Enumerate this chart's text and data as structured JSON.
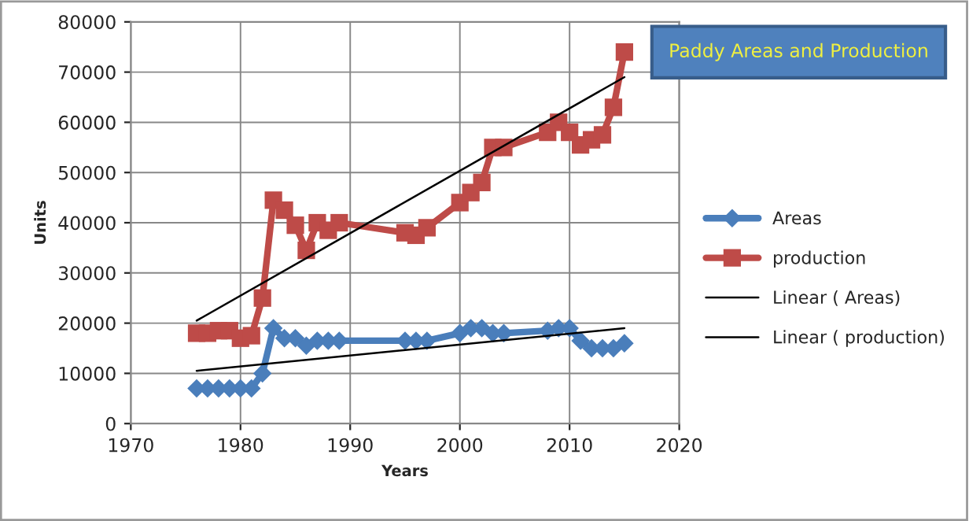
{
  "chart_data": {
    "type": "line",
    "title": "Paddy Areas and Production",
    "xlabel": "Years",
    "ylabel": "Units",
    "xlim": [
      1970,
      2020
    ],
    "xticks": [
      1970,
      1980,
      1990,
      2000,
      2010,
      2020
    ],
    "ylim": [
      0,
      80000
    ],
    "yticks": [
      0,
      10000,
      20000,
      30000,
      40000,
      50000,
      60000,
      70000,
      80000
    ],
    "grid": true,
    "legend": "right",
    "series": [
      {
        "name": "Areas",
        "color": "#4a7ebb",
        "marker": "diamond",
        "x": [
          1976,
          1977,
          1978,
          1979,
          1980,
          1981,
          1982,
          1983,
          1984,
          1985,
          1986,
          1987,
          1988,
          1989,
          1995,
          1996,
          1997,
          2000,
          2001,
          2002,
          2003,
          2004,
          2008,
          2009,
          2010,
          2011,
          2012,
          2013,
          2014,
          2015
        ],
        "values": [
          7000,
          7000,
          7000,
          7000,
          7000,
          7000,
          10000,
          19000,
          17000,
          17000,
          15500,
          16500,
          16500,
          16500,
          16500,
          16500,
          16500,
          18000,
          19000,
          19000,
          18000,
          18000,
          18500,
          19000,
          19000,
          16500,
          15000,
          15000,
          15000,
          16000
        ]
      },
      {
        "name": "production",
        "color": "#be4b48",
        "marker": "square",
        "x": [
          1976,
          1977,
          1978,
          1979,
          1980,
          1981,
          1982,
          1983,
          1984,
          1985,
          1986,
          1987,
          1988,
          1989,
          1995,
          1996,
          1997,
          2000,
          2001,
          2002,
          2003,
          2004,
          2008,
          2009,
          2010,
          2011,
          2012,
          2013,
          2014,
          2015
        ],
        "values": [
          18000,
          18000,
          18500,
          18500,
          17000,
          17500,
          25000,
          44500,
          42500,
          39500,
          34500,
          40000,
          38500,
          40000,
          38000,
          37500,
          39000,
          44000,
          46000,
          48000,
          55000,
          55000,
          58000,
          60000,
          58000,
          55500,
          56500,
          57500,
          63000,
          74000
        ]
      },
      {
        "name": "Linear ( Areas)",
        "color": "#000000",
        "marker": "none",
        "x": [
          1976,
          2015
        ],
        "values": [
          10500,
          19000
        ]
      },
      {
        "name": "Linear ( production)",
        "color": "#000000",
        "marker": "none",
        "x": [
          1976,
          2015
        ],
        "values": [
          20500,
          69000
        ]
      }
    ]
  }
}
